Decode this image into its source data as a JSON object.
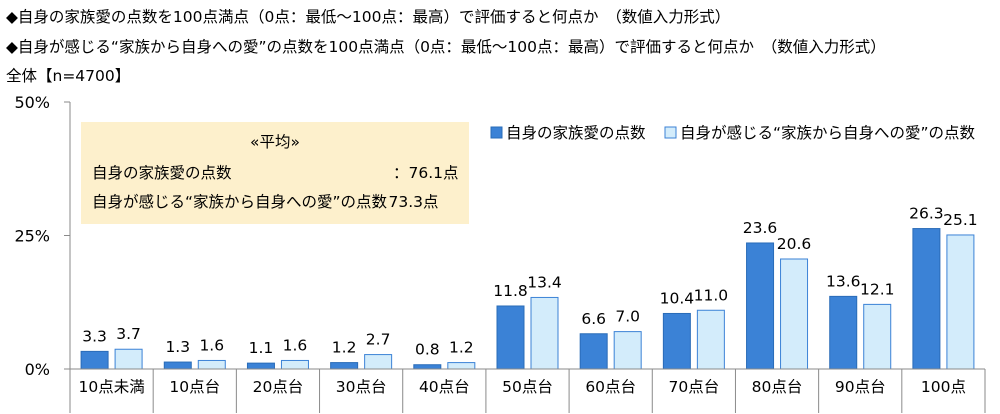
{
  "header": {
    "line1": "◆自身の家族愛の点数を100点満点（0点：最低～100点：最高）で評価すると何点か　（数値入力形式）",
    "line2": "◆自身が感じる“家族から自身への愛”の点数を100点満点（0点：最低～100点：最高）で評価すると何点か　（数値入力形式）",
    "line3": "全体【n=4700】"
  },
  "colors": {
    "series1": "#3b82d6",
    "series1_edge": "#2a6cb8",
    "series2": "#d3ecfb",
    "series2_edge": "#3b82d6",
    "avg_box": "#fdf0cc",
    "axis": "#8a8a8a"
  },
  "chart_data": {
    "type": "bar",
    "categories": [
      "10点未満",
      "10点台",
      "20点台",
      "30点台",
      "40点台",
      "50点台",
      "60点台",
      "70点台",
      "80点台",
      "90点台",
      "100点"
    ],
    "series": [
      {
        "name": "自身の家族愛の点数",
        "values": [
          3.3,
          1.3,
          1.1,
          1.2,
          0.8,
          11.8,
          6.6,
          10.4,
          23.6,
          13.6,
          26.3
        ]
      },
      {
        "name": "自身が感じる“家族から自身への愛”の点数",
        "values": [
          3.7,
          1.6,
          1.6,
          2.7,
          1.2,
          13.4,
          7.0,
          11.0,
          20.6,
          12.1,
          25.1
        ]
      }
    ],
    "yticks": [
      "0%",
      "25%",
      "50%"
    ],
    "ylim": [
      0,
      50
    ],
    "legend_position": "top-right",
    "grid": false
  },
  "average_box": {
    "title": "«平均»",
    "rows": [
      {
        "label": "自身の家族愛の点数",
        "value": "：76.1点"
      },
      {
        "label": "自身が感じる“家族から自身への愛”の点数",
        "value": "：73.3点"
      }
    ]
  }
}
